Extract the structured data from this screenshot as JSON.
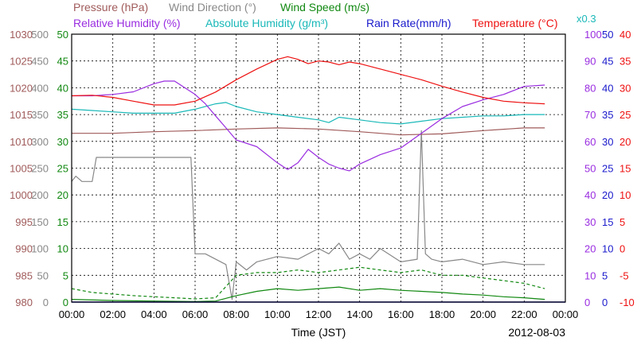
{
  "chart_data": {
    "type": "line",
    "date": "2012-08-03",
    "xlabel": "Time (JST)",
    "x_ticks": [
      "00:00",
      "02:00",
      "04:00",
      "06:00",
      "08:00",
      "10:00",
      "12:00",
      "14:00",
      "16:00",
      "18:00",
      "20:00",
      "22:00",
      "00:00"
    ],
    "xlim_hours": [
      0,
      24
    ],
    "grid": true,
    "legend": [
      {
        "key": "pressure",
        "label": "Pressure (hPa)",
        "color": "#a05a5a"
      },
      {
        "key": "wind_dir",
        "label": "Wind Direction (°)",
        "color": "#888888"
      },
      {
        "key": "wind_speed",
        "label": "Wind Speed (m/s)",
        "color": "#118811"
      },
      {
        "key": "rh",
        "label": "Relative Humidity (%)",
        "color": "#9a2de0"
      },
      {
        "key": "ah",
        "label": "Absolute Humidity (g/m³)",
        "color": "#1ab8b8"
      },
      {
        "key": "rain",
        "label": "Rain Rate(mm/h)",
        "color": "#1a1acc"
      },
      {
        "key": "temp",
        "label": "Temperature (°C)",
        "color": "#ee1111"
      },
      {
        "key": "ah_scale",
        "label": "x0.3",
        "color": "#1ab8b8"
      }
    ],
    "axes": {
      "pressure": {
        "ticks": [
          "980",
          "985",
          "990",
          "995",
          "1000",
          "1005",
          "1010",
          "1015",
          "1020",
          "1025",
          "1030"
        ],
        "range": [
          980,
          1030
        ],
        "color": "#a05a5a"
      },
      "wind_dir": {
        "ticks": [
          "0",
          "50",
          "100",
          "150",
          "200",
          "250",
          "300",
          "350",
          "400",
          "450",
          "500"
        ],
        "range": [
          0,
          500
        ],
        "color": "#888888"
      },
      "wind_speed": {
        "ticks": [
          "0",
          "5",
          "10",
          "15",
          "20",
          "25",
          "30",
          "35",
          "40",
          "45",
          "50"
        ],
        "range": [
          0,
          50
        ],
        "color": "#118811"
      },
      "rh": {
        "ticks": [
          "0",
          "10",
          "20",
          "30",
          "40",
          "50",
          "60",
          "70",
          "80",
          "90",
          "100"
        ],
        "range": [
          0,
          100
        ],
        "color": "#9a2de0"
      },
      "rain": {
        "ticks": [
          "0",
          "5",
          "10",
          "15",
          "20",
          "25",
          "30",
          "35",
          "40",
          "45",
          "50"
        ],
        "range": [
          0,
          50
        ],
        "color": "#1a1acc"
      },
      "temp": {
        "ticks": [
          "-10",
          "-5",
          "0",
          "5",
          "10",
          "15",
          "20",
          "25",
          "30",
          "35",
          "40"
        ],
        "range": [
          -10,
          40
        ],
        "color": "#ee1111"
      }
    },
    "series": [
      {
        "key": "temp",
        "name": "Temperature (°C)",
        "axis": "temp",
        "color": "#ee1111",
        "x": [
          0,
          1,
          2,
          3,
          4,
          5,
          6,
          7,
          8,
          9,
          10,
          10.5,
          11,
          11.5,
          12,
          12.5,
          13,
          13.5,
          14,
          15,
          16,
          17,
          18,
          19,
          20,
          21,
          22,
          23
        ],
        "y": [
          28.5,
          28.6,
          28.2,
          27.5,
          26.8,
          26.8,
          27.5,
          29.2,
          31.5,
          33.5,
          35.3,
          35.8,
          35.3,
          34.5,
          35,
          34.8,
          34.3,
          34.8,
          34.5,
          33.5,
          32.5,
          31.5,
          30.3,
          29.2,
          28.2,
          27.5,
          27.2,
          27
        ]
      },
      {
        "key": "rh",
        "name": "Relative Humidity (%)",
        "axis": "rh",
        "color": "#9a2de0",
        "x": [
          0,
          1,
          2,
          3,
          4,
          4.5,
          5,
          5.5,
          6,
          6.5,
          7,
          7.5,
          8,
          9,
          10,
          10.5,
          11,
          11.5,
          12,
          12.5,
          13,
          13.5,
          14,
          15,
          16,
          17,
          18,
          19,
          20,
          21,
          22,
          23
        ],
        "y": [
          77,
          77,
          77.5,
          78.5,
          81.5,
          82.5,
          82.5,
          80,
          77.5,
          74,
          69.5,
          65,
          60.5,
          58,
          52,
          49.5,
          52,
          57,
          54,
          51.5,
          50,
          49,
          51.5,
          55,
          57.5,
          63,
          68.5,
          73,
          75.5,
          77.5,
          80.5,
          81
        ]
      },
      {
        "key": "ah",
        "name": "Absolute Humidity (g/m³)",
        "axis": "rh",
        "color": "#1ab8b8",
        "x": [
          0,
          1,
          2,
          3,
          4,
          5,
          6,
          7,
          7.5,
          8,
          9,
          10,
          11,
          12,
          12.5,
          13,
          14,
          15,
          16,
          17,
          18,
          19,
          20,
          21,
          22,
          23
        ],
        "y": [
          72,
          71.5,
          71,
          70.5,
          70.5,
          70.5,
          72,
          74,
          74.5,
          73,
          71,
          70,
          69,
          68,
          67,
          69,
          68,
          67,
          66.5,
          67.5,
          68.5,
          69,
          69.5,
          69.5,
          70,
          70
        ]
      },
      {
        "key": "pressure",
        "name": "Pressure (hPa)",
        "axis": "pressure",
        "color": "#a05a5a",
        "x": [
          0,
          2,
          4,
          6,
          8,
          10,
          12,
          14,
          16,
          18,
          20,
          22,
          23
        ],
        "y": [
          1011.5,
          1011.5,
          1011.8,
          1012,
          1012.3,
          1012.5,
          1012.3,
          1011.8,
          1011.2,
          1011.4,
          1012,
          1012.5,
          1012.5
        ]
      },
      {
        "key": "wind_dir",
        "name": "Wind Direction (°)",
        "axis": "wind_dir",
        "color": "#888888",
        "x": [
          0,
          0.2,
          0.5,
          1.0,
          1.2,
          5.8,
          6.0,
          6.5,
          7.5,
          7.8,
          8.0,
          8.5,
          9,
          10,
          11,
          12,
          12.5,
          13,
          13.5,
          14,
          14.5,
          15,
          16,
          16.8,
          17,
          17.2,
          17.5,
          18,
          19,
          20,
          21,
          22,
          22.5,
          23
        ],
        "y": [
          225,
          235,
          225,
          225,
          270,
          270,
          90,
          90,
          70,
          5,
          75,
          60,
          75,
          85,
          80,
          100,
          90,
          110,
          80,
          90,
          80,
          100,
          75,
          80,
          320,
          90,
          80,
          75,
          80,
          70,
          75,
          70,
          70,
          70
        ]
      },
      {
        "key": "wind_speed",
        "name": "Wind Speed (m/s)",
        "axis": "wind_speed",
        "color": "#118811",
        "x": [
          0,
          1,
          2,
          3,
          4,
          5,
          6,
          7,
          8,
          9,
          10,
          11,
          12,
          13,
          14,
          15,
          16,
          17,
          18,
          19,
          20,
          21,
          22,
          23
        ],
        "y": [
          2.5,
          1.8,
          1.5,
          1.2,
          1,
          0.8,
          0.6,
          0.8,
          5,
          5.5,
          5.5,
          6,
          5.5,
          6,
          6.5,
          6,
          5.5,
          6,
          5,
          5,
          4.5,
          4,
          3.5,
          2.5
        ]
      },
      {
        "key": "wind_speed_min",
        "name": "Wind Speed (m/s)",
        "axis": "wind_speed",
        "color": "#118811",
        "x": [
          0,
          2,
          4,
          6,
          7,
          8,
          9,
          10,
          11,
          12,
          13,
          14,
          15,
          16,
          17,
          18,
          19,
          20,
          21,
          22,
          23
        ],
        "y": [
          0.5,
          0.3,
          0.2,
          0.1,
          0.2,
          1.2,
          2,
          2.5,
          2.2,
          2.5,
          2.8,
          2.2,
          2.5,
          2.2,
          2,
          1.8,
          1.5,
          1.3,
          1,
          0.8,
          0.5
        ]
      },
      {
        "key": "rain",
        "name": "Rain Rate(mm/h)",
        "axis": "rain",
        "color": "#1a1acc",
        "x": [
          0,
          24
        ],
        "y": [
          0,
          0
        ]
      }
    ]
  }
}
